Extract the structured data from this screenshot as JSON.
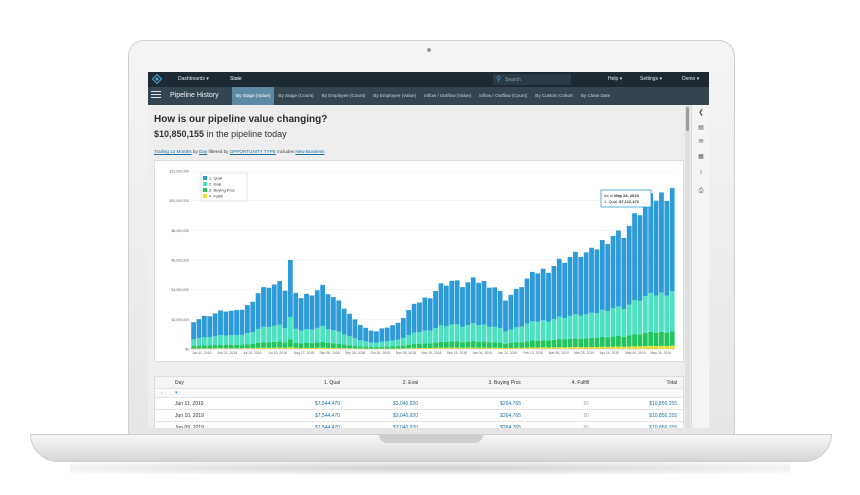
{
  "nav": {
    "items": [
      "Dashboards",
      "State"
    ],
    "search_placeholder": "Search",
    "help": "Help",
    "settings": "Settings",
    "user": "Demo"
  },
  "subnav": {
    "title": "Pipeline History",
    "tabs": [
      "By Stage (Value)",
      "By Stage (Count)",
      "By Employee (Count)",
      "By Employee (Value)",
      "Inflow / Outflow (Value)",
      "Inflow / Outflow (Count)",
      "By Custom Cohort",
      "By Close Date"
    ],
    "active_index": 0
  },
  "header": {
    "question": "How is our pipeline value changing?",
    "value": "$10,850,155",
    "value_suffix": "in the pipeline today"
  },
  "filters": {
    "range": "Trailing 12 Months",
    "by": "by",
    "granularity": "Day",
    "filtered_by": "filtered by",
    "field": "OPPORTUNITY TYPE",
    "includes": "includes",
    "value": "New Business"
  },
  "tooltip": {
    "prefix": "As of",
    "date": "May 28, 2019",
    "line": "1. Qual: ",
    "amount": "$7,112,470"
  },
  "colors": {
    "qual": "#2d9bd7",
    "eval": "#4ee0c0",
    "buying": "#22c55e",
    "fulfill": "#e8e12a"
  },
  "chart_data": {
    "type": "bar",
    "stacked": true,
    "legend": [
      "1. Qual",
      "2. Eval",
      "3. Buying Proc",
      "4. Fulfill"
    ],
    "y_ticks": [
      "$12,000,000",
      "$10,000,000",
      "$8,000,000",
      "$6,000,000",
      "$4,000,000",
      "$2,000,000",
      "$0"
    ],
    "ylim": [
      0,
      12000000
    ],
    "x_ticks": [
      "Jun 11, 2018",
      "Jun 21, 2018",
      "Jul 10, 2018",
      "Jul 20, 2018",
      "Aug 17, 2018",
      "Sep 08, 2018",
      "Sep 28, 2018",
      "Oct 16, 2018",
      "Nov 08, 2018",
      "Nov 29, 2018",
      "Dec 15, 2018",
      "Jan 04, 2019",
      "Jan 24, 2019",
      "Feb 13, 2019",
      "Mar 08, 2019",
      "Mar 25, 2019",
      "Apr 14, 2019",
      "May 04, 2019",
      "May 25, 2019"
    ],
    "totals_keypoints": [
      [
        0,
        1900000
      ],
      [
        3,
        2300000
      ],
      [
        6,
        2600000
      ],
      [
        8,
        2500000
      ],
      [
        10,
        2900000
      ],
      [
        12,
        3800000
      ],
      [
        14,
        4300000
      ],
      [
        16,
        4400000
      ],
      [
        18,
        3700000
      ],
      [
        20,
        3500000
      ],
      [
        22,
        3800000
      ],
      [
        24,
        4200000
      ],
      [
        26,
        3500000
      ],
      [
        28,
        2800000
      ],
      [
        30,
        1900000
      ],
      [
        32,
        1400000
      ],
      [
        34,
        1200000
      ],
      [
        36,
        1500000
      ],
      [
        38,
        1700000
      ],
      [
        40,
        2600000
      ],
      [
        42,
        3200000
      ],
      [
        44,
        3600000
      ],
      [
        46,
        4300000
      ],
      [
        48,
        4600000
      ],
      [
        50,
        4300000
      ],
      [
        52,
        4600000
      ],
      [
        54,
        4500000
      ],
      [
        56,
        4200000
      ],
      [
        58,
        3400000
      ],
      [
        60,
        3900000
      ],
      [
        62,
        4700000
      ],
      [
        64,
        5200000
      ],
      [
        66,
        5400000
      ],
      [
        68,
        5900000
      ],
      [
        70,
        6200000
      ],
      [
        72,
        6400000
      ],
      [
        74,
        6500000
      ],
      [
        76,
        7200000
      ],
      [
        78,
        7700000
      ],
      [
        80,
        7800000
      ],
      [
        82,
        8800000
      ],
      [
        84,
        9800000
      ],
      [
        86,
        10200000
      ],
      [
        88,
        10500000
      ],
      [
        89,
        10850155
      ]
    ],
    "stage_shares": {
      "qual": 0.64,
      "eval": 0.25,
      "buying": 0.09,
      "fulfill": 0.02
    },
    "spike": {
      "index": 18,
      "value": 6000000
    }
  },
  "table": {
    "columns": [
      "Day",
      "1. Qual",
      "2. Eval",
      "3. Buying Proc",
      "4. Fulfill",
      "Total"
    ],
    "rows": [
      [
        "Jun 11, 2019",
        "$7,544,470",
        "$3,040,920",
        "$264,765",
        "$0",
        "$10,850,155"
      ],
      [
        "Jun 10, 2019",
        "$7,544,470",
        "$3,040,920",
        "$264,765",
        "$0",
        "$10,850,155"
      ],
      [
        "Jun 09, 2019",
        "$7,544,470",
        "$3,040,920",
        "$264,765",
        "$0",
        "$10,850,155"
      ]
    ]
  }
}
